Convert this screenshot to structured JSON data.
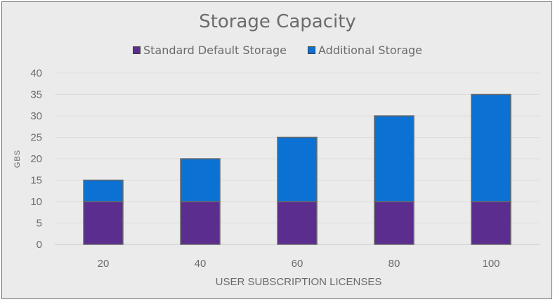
{
  "chart_data": {
    "type": "bar",
    "stacked": true,
    "title": "Storage Capacity",
    "xlabel": "USER SUBSCRIPTION LICENSES",
    "ylabel": "GBS",
    "categories": [
      "20",
      "40",
      "60",
      "80",
      "100"
    ],
    "series": [
      {
        "name": "Standard Default Storage",
        "color": "#5b2d8e",
        "values": [
          10,
          10,
          10,
          10,
          10
        ]
      },
      {
        "name": "Additional Storage",
        "color": "#0b71d3",
        "values": [
          5,
          10,
          15,
          20,
          25
        ]
      }
    ],
    "ylim": [
      0,
      40
    ],
    "yticks": [
      "0",
      "5",
      "10",
      "15",
      "20",
      "25",
      "30",
      "35",
      "40"
    ],
    "grid": true,
    "legend_position": "top"
  }
}
